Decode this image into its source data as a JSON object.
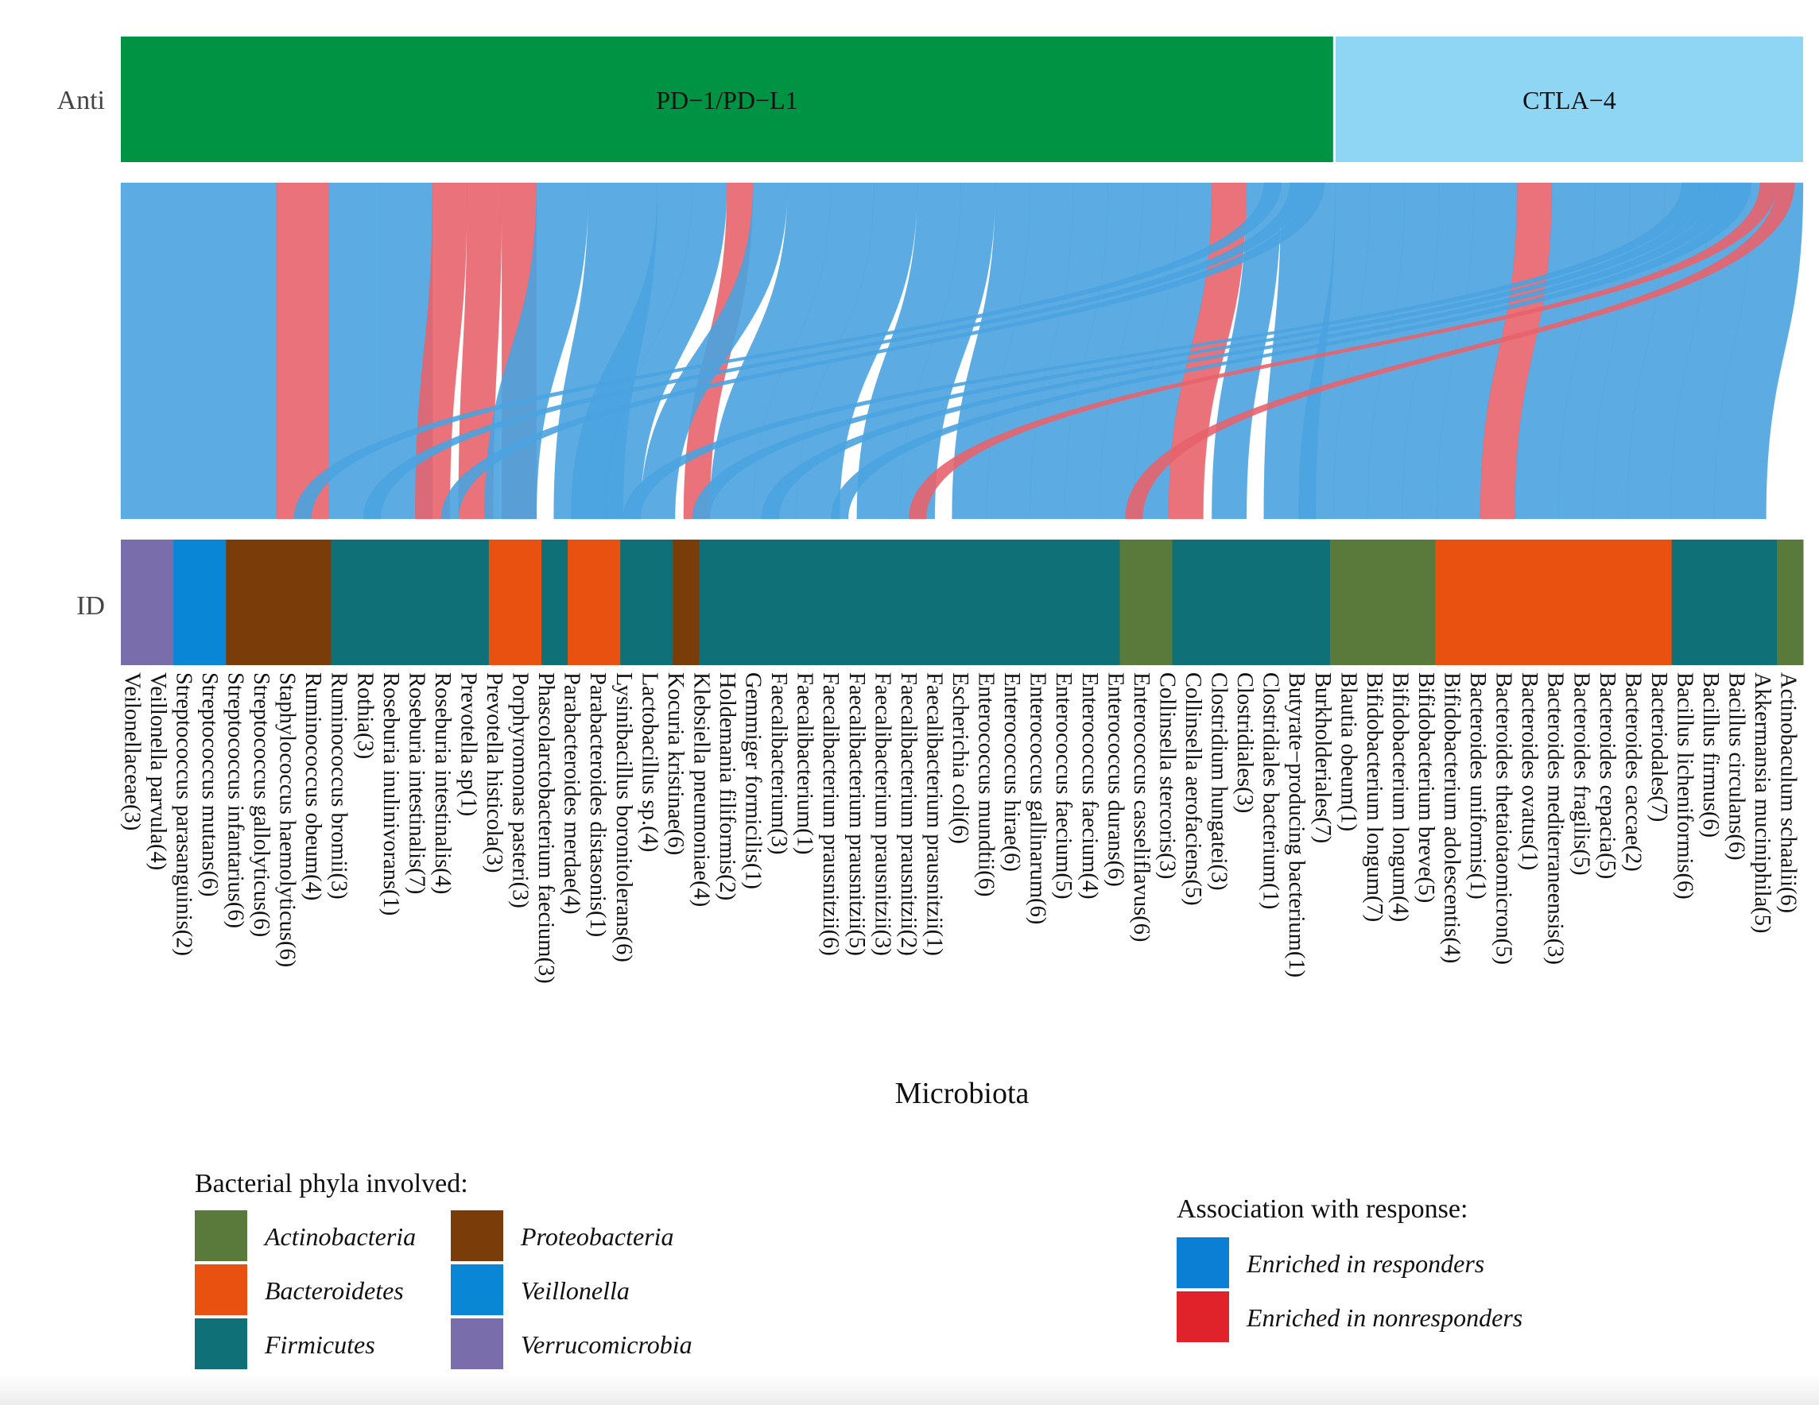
{
  "chart_data": {
    "type": "alluvial",
    "title": "",
    "axes": {
      "anti_label": "Anti",
      "id_label": "ID",
      "xlabel": "Microbiota"
    },
    "anti_strata": [
      {
        "label": "PD−1/PD−L1",
        "size": 70,
        "color": "#009343"
      },
      {
        "label": "CTLA−4",
        "size": 27,
        "color": "#8fd6f5"
      }
    ],
    "microbiota": [
      {
        "label": "Veilonellaceae(3)",
        "phylum": "Verrucomicrobia"
      },
      {
        "label": "Veillonella parvula(4)",
        "phylum": "Verrucomicrobia"
      },
      {
        "label": "Streptococcus parasanguinis(2)",
        "phylum": "Veillonella"
      },
      {
        "label": "Streptococcus mutans(6)",
        "phylum": "Veillonella"
      },
      {
        "label": "Streptococcus infantarius(6)",
        "phylum": "Proteobacteria"
      },
      {
        "label": "Streptococcus gallolyticus(6)",
        "phylum": "Proteobacteria"
      },
      {
        "label": "Staphylococcus haemolyticus(6)",
        "phylum": "Proteobacteria"
      },
      {
        "label": "Ruminococcus obeum(4)",
        "phylum": "Proteobacteria"
      },
      {
        "label": "Ruminococcus bromii(3)",
        "phylum": "Firmicutes"
      },
      {
        "label": "Rothia(3)",
        "phylum": "Firmicutes"
      },
      {
        "label": "Roseburia inulinivorans(1)",
        "phylum": "Firmicutes"
      },
      {
        "label": "Roseburia intestinalis(7)",
        "phylum": "Firmicutes"
      },
      {
        "label": "Roseburia intestinalis(4)",
        "phylum": "Firmicutes"
      },
      {
        "label": "Prevotella sp(1)",
        "phylum": "Firmicutes"
      },
      {
        "label": "Prevotella histicola(3)",
        "phylum": "Bacteroidetes"
      },
      {
        "label": "Porphyromonas pasteri(3)",
        "phylum": "Bacteroidetes"
      },
      {
        "label": "Phascolarctobacterium faecium(3)",
        "phylum": "Firmicutes"
      },
      {
        "label": "Parabacteroides merdae(4)",
        "phylum": "Bacteroidetes"
      },
      {
        "label": "Parabacteroides distasonis(1)",
        "phylum": "Bacteroidetes"
      },
      {
        "label": "Lysinibacillus boronitolerans(6)",
        "phylum": "Firmicutes"
      },
      {
        "label": "Lactobacillus sp.(4)",
        "phylum": "Firmicutes"
      },
      {
        "label": "Kocuria kristinae(6)",
        "phylum": "Proteobacteria"
      },
      {
        "label": "Klebsiella pneumoniae(4)",
        "phylum": "Firmicutes"
      },
      {
        "label": "Holdemania filiformis(2)",
        "phylum": "Firmicutes"
      },
      {
        "label": "Gemmiger formicilis(1)",
        "phylum": "Firmicutes"
      },
      {
        "label": "Faecalibacterium(3)",
        "phylum": "Firmicutes"
      },
      {
        "label": "Faecalibacterium(1)",
        "phylum": "Firmicutes"
      },
      {
        "label": "Faecalibacterium prausnitzii(6)",
        "phylum": "Firmicutes"
      },
      {
        "label": "Faecalibacterium prausnitzii(5)",
        "phylum": "Firmicutes"
      },
      {
        "label": "Faecalibacterium prausnitzii(3)",
        "phylum": "Firmicutes"
      },
      {
        "label": "Faecalibacterium prausnitzii(2)",
        "phylum": "Firmicutes"
      },
      {
        "label": "Faecalibacterium prausnitzii(1)",
        "phylum": "Firmicutes"
      },
      {
        "label": "Escherichia coli(6)",
        "phylum": "Firmicutes"
      },
      {
        "label": "Enterococcus mundtii(6)",
        "phylum": "Firmicutes"
      },
      {
        "label": "Enterococcus hirae(6)",
        "phylum": "Firmicutes"
      },
      {
        "label": "Enterococcus gallinarum(6)",
        "phylum": "Firmicutes"
      },
      {
        "label": "Enterococcus faecium(5)",
        "phylum": "Firmicutes"
      },
      {
        "label": "Enterococcus faecium(4)",
        "phylum": "Firmicutes"
      },
      {
        "label": "Enterococcus durans(6)",
        "phylum": "Firmicutes"
      },
      {
        "label": "Enterococcus casseliflavus(6)",
        "phylum": "Firmicutes"
      },
      {
        "label": "Collinsella stercoris(3)",
        "phylum": "Actinobacteria"
      },
      {
        "label": "Collinsella aerofaciens(5)",
        "phylum": "Actinobacteria"
      },
      {
        "label": "Clostridium hungatei(3)",
        "phylum": "Firmicutes"
      },
      {
        "label": "Clostridiales(3)",
        "phylum": "Firmicutes"
      },
      {
        "label": "Clostridiales bacterium(1)",
        "phylum": "Firmicutes"
      },
      {
        "label": "Butyrate−producing bacterium(1)",
        "phylum": "Firmicutes"
      },
      {
        "label": "Burkholderiales(7)",
        "phylum": "Firmicutes"
      },
      {
        "label": "Blautia obeum(1)",
        "phylum": "Firmicutes"
      },
      {
        "label": "Bifidobacterium longum(7)",
        "phylum": "Actinobacteria"
      },
      {
        "label": "Bifidobacterium longum(4)",
        "phylum": "Actinobacteria"
      },
      {
        "label": "Bifidobacterium breve(5)",
        "phylum": "Actinobacteria"
      },
      {
        "label": "Bifidobacterium adolescentis(4)",
        "phylum": "Actinobacteria"
      },
      {
        "label": "Bacteroides uniformis(1)",
        "phylum": "Bacteroidetes"
      },
      {
        "label": "Bacteroides thetaiotaomicron(5)",
        "phylum": "Bacteroidetes"
      },
      {
        "label": "Bacteroides ovatus(1)",
        "phylum": "Bacteroidetes"
      },
      {
        "label": "Bacteroides mediterraneensis(3)",
        "phylum": "Bacteroidetes"
      },
      {
        "label": "Bacteroides fragilis(5)",
        "phylum": "Bacteroidetes"
      },
      {
        "label": "Bacteroides cepacia(5)",
        "phylum": "Bacteroidetes"
      },
      {
        "label": "Bacteroides caccae(2)",
        "phylum": "Bacteroidetes"
      },
      {
        "label": "Bacteriodales(7)",
        "phylum": "Bacteroidetes"
      },
      {
        "label": "Bacillus licheniformis(6)",
        "phylum": "Firmicutes"
      },
      {
        "label": "Bacillus firmus(6)",
        "phylum": "Firmicutes"
      },
      {
        "label": "Bacillus circulans(6)",
        "phylum": "Firmicutes"
      },
      {
        "label": "Akkermansia muciniphila(5)",
        "phylum": "Firmicutes"
      },
      {
        "label": "Actinobaculum schaalii(6)",
        "phylum": "Actinobacteria"
      }
    ],
    "id_strata": [
      {
        "phylum": "Verrucomicrobia",
        "size": 3
      },
      {
        "phylum": "Veillonella",
        "size": 3
      },
      {
        "phylum": "Proteobacteria",
        "size": 6
      },
      {
        "phylum": "Firmicutes",
        "size": 9
      },
      {
        "phylum": "Bacteroidetes",
        "size": 3
      },
      {
        "phylum": "Firmicutes",
        "size": 1.5
      },
      {
        "phylum": "Bacteroidetes",
        "size": 3
      },
      {
        "phylum": "Firmicutes",
        "size": 3
      },
      {
        "phylum": "Proteobacteria",
        "size": 1.5
      },
      {
        "phylum": "Firmicutes",
        "size": 24
      },
      {
        "phylum": "Actinobacteria",
        "size": 3
      },
      {
        "phylum": "Firmicutes",
        "size": 9
      },
      {
        "phylum": "Actinobacteria",
        "size": 6
      },
      {
        "phylum": "Bacteroidetes",
        "size": 13.5
      },
      {
        "phylum": "Firmicutes",
        "size": 6
      },
      {
        "phylum": "Actinobacteria",
        "size": 1.5
      }
    ],
    "flows": [
      {
        "anti": 0,
        "from": 0,
        "to": 0,
        "size": 9,
        "response": "responders"
      },
      {
        "anti": 0,
        "from": 9,
        "to": 9,
        "size": 3,
        "response": "nonresponders"
      },
      {
        "anti": 0,
        "from": 12,
        "to": 12,
        "size": 3,
        "response": "responders"
      },
      {
        "anti": 0,
        "from": 15,
        "to": 15,
        "size": 3,
        "response": "responders"
      },
      {
        "anti": 0,
        "from": 18,
        "to": 17,
        "size": 2,
        "response": "nonresponders"
      },
      {
        "anti": 0,
        "from": 20,
        "to": 19.5,
        "size": 2,
        "response": "nonresponders"
      },
      {
        "anti": 0,
        "from": 22,
        "to": 22,
        "size": 2,
        "response": "nonresponders"
      },
      {
        "anti": 0,
        "from": 24,
        "to": 21,
        "size": 3,
        "response": "responders"
      },
      {
        "anti": 0,
        "from": 27,
        "to": 25,
        "size": 4,
        "response": "responders"
      },
      {
        "anti": 0,
        "from": 31,
        "to": 26,
        "size": 2,
        "response": "responders"
      },
      {
        "anti": 0,
        "from": 33,
        "to": 28,
        "size": 2,
        "response": "responders"
      },
      {
        "anti": 0,
        "from": 35,
        "to": 32.5,
        "size": 1.5,
        "response": "nonresponders"
      },
      {
        "anti": 0,
        "from": 36.5,
        "to": 30,
        "size": 2,
        "response": "responders"
      },
      {
        "anti": 0,
        "from": 38.5,
        "to": 34,
        "size": 2.5,
        "response": "responders"
      },
      {
        "anti": 0,
        "from": 41,
        "to": 36.5,
        "size": 2.5,
        "response": "responders"
      },
      {
        "anti": 0,
        "from": 43.5,
        "to": 39,
        "size": 2.5,
        "response": "responders"
      },
      {
        "anti": 0,
        "from": 46,
        "to": 42.5,
        "size": 2.5,
        "response": "responders"
      },
      {
        "anti": 0,
        "from": 48.5,
        "to": 45,
        "size": 2,
        "response": "responders"
      },
      {
        "anti": 0,
        "from": 50.5,
        "to": 48,
        "size": 2,
        "response": "responders"
      },
      {
        "anti": 0,
        "from": 52.5,
        "to": 50,
        "size": 2.5,
        "response": "responders"
      },
      {
        "anti": 0,
        "from": 55,
        "to": 52.5,
        "size": 2,
        "response": "responders"
      },
      {
        "anti": 0,
        "from": 57,
        "to": 54.5,
        "size": 2,
        "response": "responders"
      },
      {
        "anti": 0,
        "from": 59,
        "to": 56.5,
        "size": 2,
        "response": "responders"
      },
      {
        "anti": 0,
        "from": 61,
        "to": 58.5,
        "size": 2,
        "response": "responders"
      },
      {
        "anti": 0,
        "from": 63,
        "to": 60.5,
        "size": 2,
        "response": "nonresponders"
      },
      {
        "anti": 0,
        "from": 65,
        "to": 63,
        "size": 2,
        "response": "responders"
      },
      {
        "anti": 0,
        "from": 67,
        "to": 66,
        "size": 3,
        "response": "responders"
      },
      {
        "anti": 0,
        "from": 66,
        "to": 10,
        "size": 1,
        "response": "responders"
      },
      {
        "anti": 0,
        "from": 67.5,
        "to": 14,
        "size": 1,
        "response": "responders"
      },
      {
        "anti": 0,
        "from": 68.5,
        "to": 18.5,
        "size": 1,
        "response": "responders"
      },
      {
        "anti": 1,
        "from": 70,
        "to": 68,
        "size": 2,
        "response": "responders"
      },
      {
        "anti": 1,
        "from": 72,
        "to": 70,
        "size": 2,
        "response": "responders"
      },
      {
        "anti": 1,
        "from": 74,
        "to": 72,
        "size": 2,
        "response": "responders"
      },
      {
        "anti": 1,
        "from": 76,
        "to": 74,
        "size": 2,
        "response": "responders"
      },
      {
        "anti": 1,
        "from": 78,
        "to": 76,
        "size": 2.5,
        "response": "responders"
      },
      {
        "anti": 1,
        "from": 80.5,
        "to": 78.5,
        "size": 2,
        "response": "nonresponders"
      },
      {
        "anti": 1,
        "from": 82.5,
        "to": 80.5,
        "size": 2.5,
        "response": "responders"
      },
      {
        "anti": 1,
        "from": 85,
        "to": 83,
        "size": 2,
        "response": "responders"
      },
      {
        "anti": 1,
        "from": 87,
        "to": 85,
        "size": 2,
        "response": "responders"
      },
      {
        "anti": 1,
        "from": 89,
        "to": 87,
        "size": 2.5,
        "response": "responders"
      },
      {
        "anti": 1,
        "from": 91.5,
        "to": 89.5,
        "size": 2.5,
        "response": "responders"
      },
      {
        "anti": 1,
        "from": 94,
        "to": 92,
        "size": 3,
        "response": "responders"
      },
      {
        "anti": 1,
        "from": 90,
        "to": 29,
        "size": 1,
        "response": "responders"
      },
      {
        "anti": 1,
        "from": 91,
        "to": 33,
        "size": 1,
        "response": "responders"
      },
      {
        "anti": 1,
        "from": 92,
        "to": 37,
        "size": 1,
        "response": "responders"
      },
      {
        "anti": 1,
        "from": 93,
        "to": 41,
        "size": 1,
        "response": "responders"
      },
      {
        "anti": 1,
        "from": 94.5,
        "to": 45.5,
        "size": 1,
        "response": "nonresponders"
      },
      {
        "anti": 1,
        "from": 95.5,
        "to": 58,
        "size": 1,
        "response": "nonresponders"
      }
    ],
    "legends": {
      "phyla_title": "Bacterial phyla involved:",
      "phyla": [
        {
          "name": "Actinobacteria",
          "color": "#5a7a3c"
        },
        {
          "name": "Bacteroidetes",
          "color": "#e8510f"
        },
        {
          "name": "Firmicutes",
          "color": "#0f7177"
        },
        {
          "name": "Proteobacteria",
          "color": "#7a3d0a"
        },
        {
          "name": "Veillonella",
          "color": "#0a86d6"
        },
        {
          "name": "Verrucomicrobia",
          "color": "#7a6dab"
        }
      ],
      "response_title": "Association with response:",
      "response": [
        {
          "key": "responders",
          "name": "Enriched in responders",
          "color": "#0a7fd4"
        },
        {
          "key": "nonresponders",
          "name": "Enriched in nonresponders",
          "color": "#e0222a"
        }
      ]
    },
    "flow_colors": {
      "responders": "#4aa3e0",
      "nonresponders": "#e8636b"
    }
  }
}
